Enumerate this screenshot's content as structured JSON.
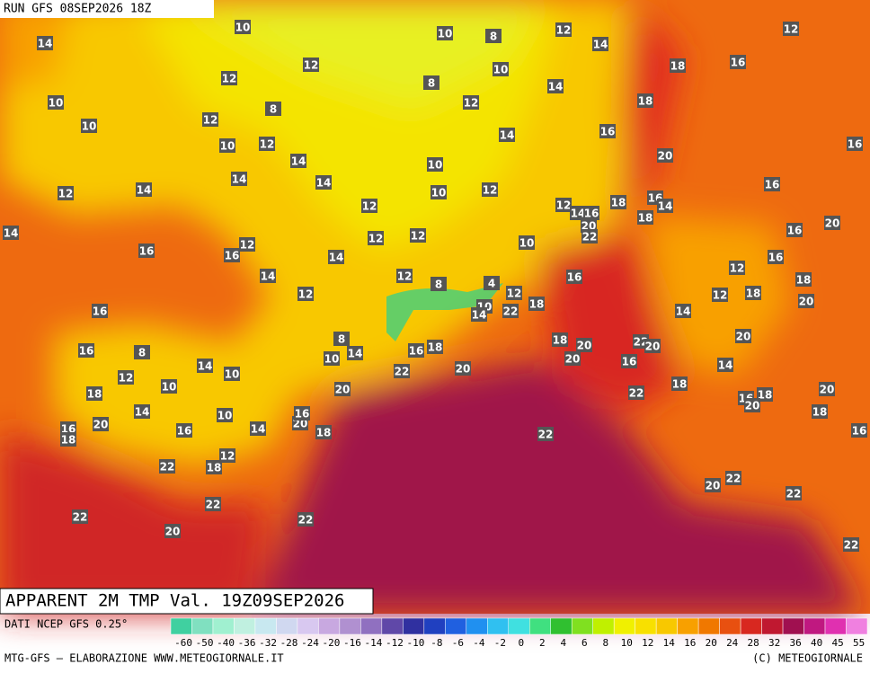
{
  "header": {
    "run": "RUN GFS 08SEP2026 18Z"
  },
  "title": "APPARENT 2M TMP Val. 19Z09SEP2026",
  "source": "DATI NCEP GFS 0.25°",
  "credit": "MTG-GFS — ELABORAZIONE WWW.METEOGIORNALE.IT",
  "copyright": "(C) METEOGIORNALE",
  "colorbar": {
    "ticks": [
      -60,
      -50,
      -40,
      -36,
      -32,
      -28,
      -24,
      -20,
      -16,
      -14,
      -12,
      -10,
      -8,
      -6,
      -4,
      -2,
      0,
      2,
      4,
      6,
      8,
      10,
      12,
      14,
      16,
      20,
      24,
      28,
      32,
      36,
      40,
      45,
      55
    ],
    "colors": [
      "#40d0a0",
      "#80e0c0",
      "#a0f0d0",
      "#c0f0e0",
      "#c8e8f0",
      "#d0d8f0",
      "#d8c8f0",
      "#c8a8e0",
      "#b090d0",
      "#9070c0",
      "#6048a8",
      "#3030a0",
      "#2040c0",
      "#2060e0",
      "#2090f0",
      "#30c0f0",
      "#40e0e0",
      "#40e080",
      "#30c030",
      "#80e020",
      "#c0f000",
      "#f0f000",
      "#f8e000",
      "#f8c800",
      "#f8a000",
      "#f07800",
      "#e85010",
      "#d82820",
      "#c01830",
      "#a01050",
      "#c01880",
      "#e030b0",
      "#f080e0"
    ]
  },
  "map_labels": [
    14,
    10,
    10,
    8,
    12,
    14,
    12,
    12,
    12,
    18,
    16,
    10,
    8,
    10,
    10,
    12,
    8,
    12,
    14,
    18,
    16,
    16,
    10,
    12,
    14,
    14,
    20,
    12,
    14,
    14,
    14,
    10,
    10,
    12,
    16,
    12,
    12,
    14,
    16,
    18,
    16,
    14,
    18,
    20,
    22,
    20,
    14,
    16,
    16,
    12,
    12,
    12,
    10,
    16,
    16,
    14,
    14,
    12,
    12,
    8,
    4,
    12,
    16,
    12,
    18,
    20,
    12,
    18,
    16,
    10,
    14,
    22,
    18,
    14,
    8,
    16,
    8,
    14,
    10,
    16,
    18,
    18,
    20,
    22,
    20,
    20,
    20,
    16,
    14,
    14,
    10,
    12,
    10,
    22,
    20,
    18,
    22,
    18,
    20,
    16,
    18,
    20,
    20,
    18,
    14,
    20,
    16,
    18,
    16,
    10,
    14,
    20,
    16,
    18,
    22,
    16,
    12,
    18,
    22,
    22,
    20,
    22,
    22,
    22,
    22,
    20,
    22
  ]
}
